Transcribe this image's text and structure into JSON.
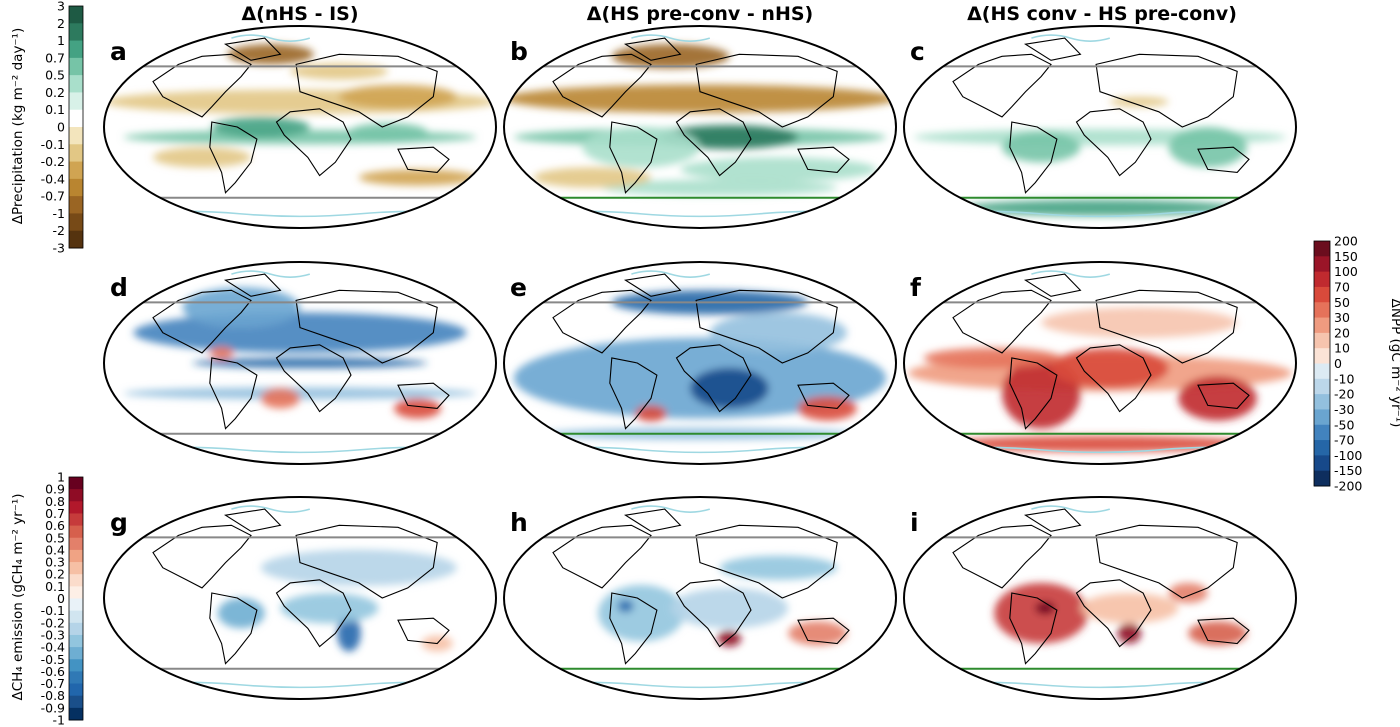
{
  "column_titles": [
    "Δ(nHS - IS)",
    "Δ(HS pre-conv - nHS)",
    "Δ(HS conv - HS pre-conv)"
  ],
  "panel_labels": [
    "a",
    "b",
    "c",
    "d",
    "e",
    "f",
    "g",
    "h",
    "i"
  ],
  "colorbars": {
    "precip": {
      "title": "ΔPrecipitation (kg m⁻² day⁻¹)",
      "ticks": [
        "3",
        "2",
        "1",
        "0.7",
        "0.5",
        "0.2",
        "0.1",
        "0",
        "-0.1",
        "-0.2",
        "-0.4",
        "-0.7",
        "-1",
        "-2",
        "-3"
      ],
      "colors": [
        "#1e5a44",
        "#2d7a5e",
        "#44a283",
        "#76c4a7",
        "#a9dfcb",
        "#d8f1e8",
        "#ffffff",
        "#f3e5bd",
        "#e2c785",
        "#d0a452",
        "#b98530",
        "#9a6523",
        "#774a17",
        "#55330f"
      ]
    },
    "npp": {
      "title": "ΔNPP (gC m⁻² yr⁻¹)",
      "ticks": [
        "200",
        "150",
        "100",
        "70",
        "50",
        "30",
        "20",
        "10",
        "0",
        "-10",
        "-20",
        "-30",
        "-50",
        "-70",
        "-100",
        "-150",
        "-200"
      ],
      "colors": [
        "#6b0d1e",
        "#9a1528",
        "#c02a2f",
        "#d94a3b",
        "#e5725a",
        "#ef9b80",
        "#f6c4ae",
        "#fbe3d6",
        "#dceaf3",
        "#bcd7ea",
        "#93c0de",
        "#6aa5d0",
        "#4283be",
        "#2566a7",
        "#17498a",
        "#0e2e5e"
      ]
    },
    "ch4": {
      "title": "ΔCH₄ emission (gCH₄ m⁻² yr⁻¹)",
      "ticks": [
        "1",
        "0.9",
        "0.8",
        "0.7",
        "0.6",
        "0.5",
        "0.4",
        "0.3",
        "0.2",
        "0.1",
        "0",
        "-0.1",
        "-0.2",
        "-0.3",
        "-0.4",
        "-0.5",
        "-0.6",
        "-0.7",
        "-0.8",
        "-0.9",
        "-1"
      ],
      "colors": [
        "#67001f",
        "#8f0c25",
        "#b2182b",
        "#c63b3b",
        "#d6604d",
        "#e3806a",
        "#f0a384",
        "#f6c0a5",
        "#fbdccb",
        "#fdefe6",
        "#e9f2f8",
        "#d1e5f0",
        "#b5d4e8",
        "#92c5de",
        "#6eaed2",
        "#4393c3",
        "#3079b5",
        "#2166ac",
        "#1a4f8a",
        "#053061"
      ]
    }
  },
  "colors": {
    "ice_sheet_outline": "#9fd8e2",
    "sea_ice_edge_gray": "#888888",
    "sea_ice_edge_green": "#2e8b2e",
    "coast": "#000000"
  }
}
